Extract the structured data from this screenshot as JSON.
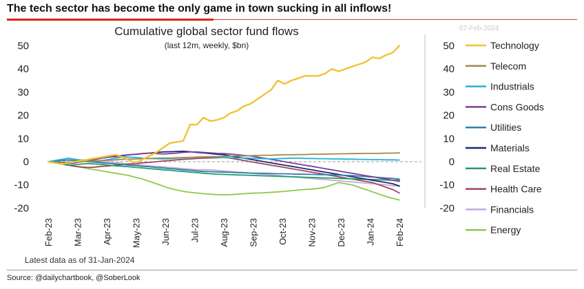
{
  "headline": "The tech sector has become the only game in town sucking in all inflows!",
  "date_stamp": "07-Feb-2024",
  "source": "Source: @dailychartbook, @SoberLook",
  "chart_data": {
    "type": "line",
    "title": "Cumulative global sector fund flows",
    "subtitle": "(last 12m, weekly, $bn)",
    "footnote": "Latest data as of 31-Jan-2024",
    "xlabel": "",
    "ylabel": "",
    "ylim": [
      -20,
      55
    ],
    "yticks": [
      50,
      40,
      30,
      20,
      10,
      0,
      -10,
      -20
    ],
    "x_tick_labels": [
      "Feb-23",
      "Mar-23",
      "Apr-23",
      "May-23",
      "Jun-23",
      "Jul-23",
      "Aug-23",
      "Sep-23",
      "Oct-23",
      "Nov-23",
      "Dec-23",
      "Jan-24",
      "Feb-24"
    ],
    "weeks": 53,
    "legend_position": "right",
    "grid": false,
    "series": [
      {
        "name": "Technology",
        "color": "#f1c232",
        "values": [
          0,
          -0.5,
          -1,
          -0.5,
          0,
          0.5,
          1,
          1.5,
          2,
          2.5,
          3,
          2,
          0.5,
          -0.5,
          1,
          2.5,
          4,
          6,
          8,
          8.5,
          9,
          16,
          16,
          19,
          17.5,
          18,
          19,
          21,
          22,
          24,
          25,
          27,
          29,
          31,
          35,
          33.5,
          35,
          36,
          37,
          37,
          37,
          38,
          40,
          39,
          40,
          41,
          42,
          43,
          45,
          44.5,
          46,
          47,
          50
        ]
      },
      {
        "name": "Telecom",
        "color": "#a08a4a",
        "values": [
          0,
          -0.3,
          -0.5,
          -0.4,
          -0.2,
          0,
          0.2,
          0.4,
          0.5,
          0.6,
          0.8,
          1,
          1.1,
          1.2,
          1.3,
          1.4,
          1.5,
          1.6,
          1.6,
          1.7,
          1.8,
          1.9,
          2,
          2.1,
          2.2,
          2.2,
          2.3,
          2.4,
          2.5,
          2.5,
          2.6,
          2.7,
          2.8,
          2.8,
          2.9,
          3,
          3,
          3.1,
          3.1,
          3.2,
          3.2,
          3.3,
          3.3,
          3.4,
          3.4,
          3.5,
          3.5,
          3.6,
          3.6,
          3.6,
          3.7,
          3.7,
          3.8
        ]
      },
      {
        "name": "Industrials",
        "color": "#22b0d8",
        "values": [
          0,
          0.5,
          1,
          1.5,
          1,
          0.5,
          0.3,
          0.2,
          0.5,
          1,
          1.5,
          2,
          2,
          1.8,
          1.5,
          1.4,
          1.3,
          1.2,
          1.3,
          1.5,
          1.6,
          1.8,
          2,
          2.1,
          2,
          1.9,
          1.8,
          1.7,
          1.6,
          1.6,
          1.5,
          1.4,
          1.3,
          1.2,
          1.3,
          1.4,
          1.5,
          1.5,
          1.4,
          1.4,
          1.3,
          1.3,
          1.2,
          1.2,
          1.1,
          1.1,
          1,
          1,
          0.9,
          0.9,
          0.8,
          0.8,
          0.7
        ]
      },
      {
        "name": "Cons Goods",
        "color": "#7d3c98",
        "values": [
          0,
          -0.5,
          -1,
          -0.8,
          -0.5,
          0,
          0.5,
          1,
          1.5,
          2,
          2.2,
          2.5,
          3,
          3.2,
          3.5,
          3.7,
          3.5,
          3.3,
          3.5,
          3.7,
          4,
          4.2,
          4.2,
          4,
          3.8,
          3.6,
          3.5,
          3.3,
          3,
          2.7,
          2.5,
          2,
          1.5,
          1,
          0.5,
          0,
          -0.5,
          -1,
          -1.5,
          -2,
          -2.5,
          -3,
          -3.5,
          -4,
          -4.5,
          -5,
          -5.5,
          -6,
          -6.5,
          -7,
          -7.5,
          -8,
          -8.5
        ]
      },
      {
        "name": "Utilities",
        "color": "#2e7fa8",
        "values": [
          0,
          0.3,
          0.5,
          0.7,
          0.5,
          0.2,
          0,
          -0.2,
          -0.5,
          -0.7,
          -1,
          -1.2,
          -1.5,
          -1.7,
          -2,
          -2.2,
          -2.5,
          -2.7,
          -3,
          -3.2,
          -3.5,
          -3.7,
          -4,
          -4.2,
          -4.3,
          -4.4,
          -4.5,
          -4.6,
          -4.7,
          -4.8,
          -4.9,
          -5,
          -5,
          -5.1,
          -5.2,
          -5.2,
          -5.3,
          -5.4,
          -5.4,
          -5.5,
          -5.6,
          -5.6,
          -5.7,
          -5.8,
          -5.9,
          -6,
          -6.2,
          -6.4,
          -6.6,
          -6.8,
          -7,
          -7.2,
          -7.5
        ]
      },
      {
        "name": "Materials",
        "color": "#1f2a6b",
        "values": [
          0,
          -0.2,
          -0.4,
          -0.3,
          0,
          0.5,
          1,
          1.5,
          2,
          2.2,
          2.5,
          2.7,
          3,
          3.2,
          3.5,
          3.7,
          4,
          4.2,
          4.3,
          4.4,
          4.5,
          4.3,
          4,
          3.8,
          3.5,
          3.2,
          3,
          2.5,
          2,
          1.5,
          1,
          0.5,
          0,
          -0.5,
          -1,
          -1.5,
          -2,
          -2.5,
          -3,
          -3.5,
          -4,
          -4.5,
          -5,
          -5.5,
          -6,
          -6.5,
          -7,
          -7.5,
          -8,
          -8.5,
          -9,
          -9.5,
          -10.5
        ]
      },
      {
        "name": "Real Estate",
        "color": "#1e9e6a",
        "values": [
          0,
          -0.5,
          -1,
          -1.5,
          -1.3,
          -1,
          -0.8,
          -1,
          -1.2,
          -1.5,
          -1.8,
          -2,
          -2.2,
          -2.5,
          -2.7,
          -3,
          -3.2,
          -3.5,
          -3.7,
          -4,
          -4.2,
          -4.5,
          -4.7,
          -5,
          -5.2,
          -5.4,
          -5.5,
          -5.6,
          -5.7,
          -5.8,
          -5.9,
          -6,
          -6.1,
          -6.2,
          -6.3,
          -6.4,
          -6.5,
          -6.6,
          -6.7,
          -6.8,
          -6.9,
          -7,
          -7.1,
          -7.2,
          -7.3,
          -7.4,
          -7.5,
          -7.6,
          -7.7,
          -7.8,
          -7.9,
          -8,
          -8
        ]
      },
      {
        "name": "Health Care",
        "color": "#a0445c",
        "values": [
          0,
          -0.5,
          -1,
          -1.5,
          -2,
          -2.3,
          -2.5,
          -2.3,
          -2,
          -1.8,
          -1.5,
          -1.3,
          -1,
          -0.8,
          -0.5,
          -0.3,
          0,
          0.3,
          0.5,
          0.8,
          1,
          1.2,
          1.4,
          1.5,
          1.6,
          1.7,
          1.8,
          1.5,
          1,
          0.5,
          0,
          -0.5,
          -1,
          -1.5,
          -2,
          -2.5,
          -3,
          -3.5,
          -4,
          -4.5,
          -5,
          -5.5,
          -6,
          -6.5,
          -7,
          -7.5,
          -8,
          -8.5,
          -9,
          -10,
          -11,
          -12,
          -13.5
        ]
      },
      {
        "name": "Financials",
        "color": "#c0a8e0",
        "values": [
          0,
          0.5,
          1,
          1.3,
          1,
          0.8,
          0.5,
          0.3,
          0,
          -0.2,
          -0.5,
          -0.7,
          -1,
          -1.2,
          -1.5,
          -1.8,
          -2,
          -2.2,
          -2.5,
          -2.7,
          -3,
          -3.2,
          -3.5,
          -3.5,
          -3.5,
          -3.7,
          -4,
          -4.2,
          -4.5,
          -4.7,
          -5,
          -5.2,
          -5.5,
          -5.7,
          -6,
          -6.2,
          -6.5,
          -6.7,
          -7,
          -7.2,
          -7.5,
          -7.7,
          -8,
          -8.2,
          -8.5,
          -8.7,
          -9,
          -9.2,
          -9.5,
          -9.7,
          -10,
          -10.3,
          -10.5
        ]
      },
      {
        "name": "Energy",
        "color": "#8cc84b",
        "values": [
          0,
          -0.5,
          -1,
          -1.5,
          -2,
          -2.5,
          -3,
          -3.5,
          -4,
          -4.5,
          -5,
          -5.5,
          -6,
          -6.8,
          -7.5,
          -8.5,
          -9.5,
          -10.5,
          -11.5,
          -12.2,
          -12.8,
          -13.2,
          -13.5,
          -13.8,
          -14,
          -14.2,
          -14.3,
          -14.2,
          -14,
          -13.8,
          -13.6,
          -13.5,
          -13.4,
          -13.2,
          -13,
          -12.8,
          -12.5,
          -12.2,
          -12,
          -11.8,
          -11.5,
          -11,
          -10,
          -9,
          -9.5,
          -10,
          -11,
          -12,
          -13,
          -14,
          -15,
          -15.8,
          -16.5
        ]
      }
    ]
  }
}
